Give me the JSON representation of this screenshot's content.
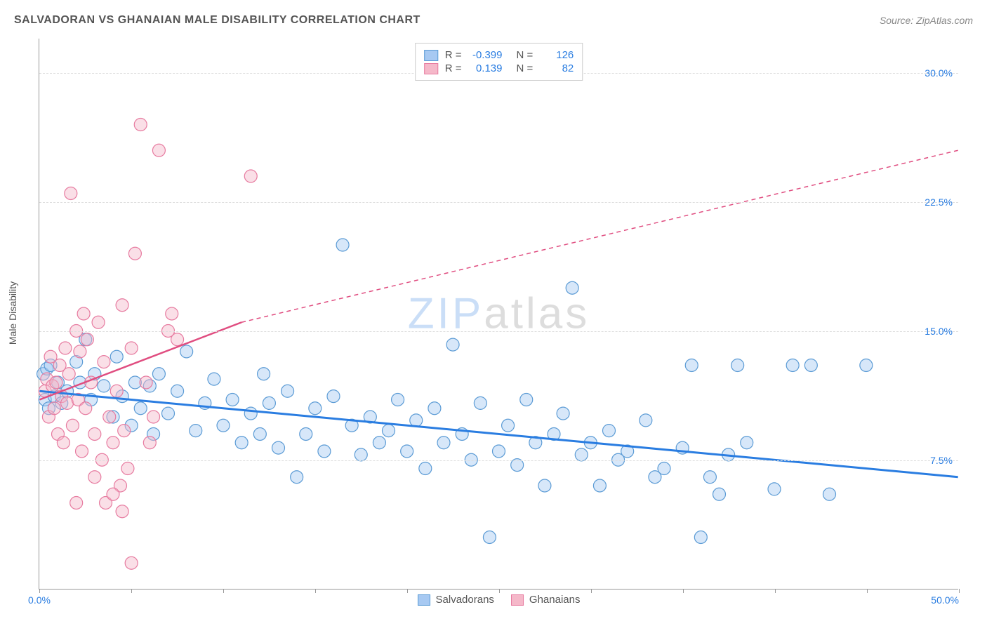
{
  "title": "SALVADORAN VS GHANAIAN MALE DISABILITY CORRELATION CHART",
  "source": "Source: ZipAtlas.com",
  "ylabel": "Male Disability",
  "watermark": {
    "part1": "ZIP",
    "part2": "atlas"
  },
  "chart": {
    "type": "scatter",
    "xlim": [
      0,
      50
    ],
    "ylim": [
      0,
      32
    ],
    "xaxis_labels": {
      "min": "0.0%",
      "max": "50.0%"
    },
    "xtick_positions": [
      0,
      5,
      10,
      15,
      20,
      25,
      30,
      35,
      40,
      45,
      50
    ],
    "ytick_labels": [
      {
        "value": 7.5,
        "label": "7.5%"
      },
      {
        "value": 15.0,
        "label": "15.0%"
      },
      {
        "value": 22.5,
        "label": "22.5%"
      },
      {
        "value": 30.0,
        "label": "30.0%"
      }
    ],
    "grid_color": "#dddddd",
    "axis_color": "#999999",
    "label_color": "#2a7de1",
    "background_color": "#ffffff",
    "marker_radius": 9,
    "marker_opacity": 0.45,
    "series": [
      {
        "name": "Salvadorans",
        "fill": "#a7c9f2",
        "stroke": "#5b9bd5",
        "trend": {
          "x1": 0,
          "y1": 11.5,
          "x2": 50,
          "y2": 6.5,
          "color": "#2a7de1",
          "width": 3,
          "dash": "none"
        },
        "stats": {
          "R": "-0.399",
          "N": "126"
        },
        "points": [
          [
            0.2,
            12.5
          ],
          [
            0.3,
            11.0
          ],
          [
            0.4,
            12.8
          ],
          [
            0.5,
            10.5
          ],
          [
            0.6,
            13.0
          ],
          [
            0.8,
            11.2
          ],
          [
            1.0,
            12.0
          ],
          [
            1.2,
            10.8
          ],
          [
            1.5,
            11.5
          ],
          [
            2.0,
            13.2
          ],
          [
            2.2,
            12.0
          ],
          [
            2.5,
            14.5
          ],
          [
            2.8,
            11.0
          ],
          [
            3.0,
            12.5
          ],
          [
            3.5,
            11.8
          ],
          [
            4.0,
            10.0
          ],
          [
            4.2,
            13.5
          ],
          [
            4.5,
            11.2
          ],
          [
            5.0,
            9.5
          ],
          [
            5.2,
            12.0
          ],
          [
            5.5,
            10.5
          ],
          [
            6.0,
            11.8
          ],
          [
            6.2,
            9.0
          ],
          [
            6.5,
            12.5
          ],
          [
            7.0,
            10.2
          ],
          [
            7.5,
            11.5
          ],
          [
            8.0,
            13.8
          ],
          [
            8.5,
            9.2
          ],
          [
            9.0,
            10.8
          ],
          [
            9.5,
            12.2
          ],
          [
            10.0,
            9.5
          ],
          [
            10.5,
            11.0
          ],
          [
            11.0,
            8.5
          ],
          [
            11.5,
            10.2
          ],
          [
            12.0,
            9.0
          ],
          [
            12.2,
            12.5
          ],
          [
            12.5,
            10.8
          ],
          [
            13.0,
            8.2
          ],
          [
            13.5,
            11.5
          ],
          [
            14.0,
            6.5
          ],
          [
            14.5,
            9.0
          ],
          [
            15.0,
            10.5
          ],
          [
            15.5,
            8.0
          ],
          [
            16.0,
            11.2
          ],
          [
            16.5,
            20.0
          ],
          [
            17.0,
            9.5
          ],
          [
            17.5,
            7.8
          ],
          [
            18.0,
            10.0
          ],
          [
            18.5,
            8.5
          ],
          [
            19.0,
            9.2
          ],
          [
            19.5,
            11.0
          ],
          [
            20.0,
            8.0
          ],
          [
            20.5,
            9.8
          ],
          [
            21.0,
            7.0
          ],
          [
            21.5,
            10.5
          ],
          [
            22.0,
            8.5
          ],
          [
            22.5,
            14.2
          ],
          [
            23.0,
            9.0
          ],
          [
            23.5,
            7.5
          ],
          [
            24.0,
            10.8
          ],
          [
            24.5,
            3.0
          ],
          [
            25.0,
            8.0
          ],
          [
            25.5,
            9.5
          ],
          [
            26.0,
            7.2
          ],
          [
            26.5,
            11.0
          ],
          [
            27.0,
            8.5
          ],
          [
            27.5,
            6.0
          ],
          [
            28.0,
            9.0
          ],
          [
            28.5,
            10.2
          ],
          [
            29.0,
            17.5
          ],
          [
            29.5,
            7.8
          ],
          [
            30.0,
            8.5
          ],
          [
            30.5,
            6.0
          ],
          [
            31.0,
            9.2
          ],
          [
            31.5,
            7.5
          ],
          [
            32.0,
            8.0
          ],
          [
            33.0,
            9.8
          ],
          [
            33.5,
            6.5
          ],
          [
            34.0,
            7.0
          ],
          [
            35.0,
            8.2
          ],
          [
            35.5,
            13.0
          ],
          [
            36.0,
            3.0
          ],
          [
            36.5,
            6.5
          ],
          [
            37.0,
            5.5
          ],
          [
            37.5,
            7.8
          ],
          [
            38.0,
            13.0
          ],
          [
            38.5,
            8.5
          ],
          [
            40.0,
            5.8
          ],
          [
            41.0,
            13.0
          ],
          [
            42.0,
            13.0
          ],
          [
            43.0,
            5.5
          ],
          [
            45.0,
            13.0
          ]
        ]
      },
      {
        "name": "Ghanaians",
        "fill": "#f5b8c9",
        "stroke": "#e77ba0",
        "trend": {
          "x1": 0,
          "y1": 11.0,
          "x2": 11,
          "y2": 15.5,
          "color": "#e04d80",
          "width": 2.5,
          "dash_after": {
            "x1": 11,
            "y1": 15.5,
            "x2": 50,
            "y2": 25.5,
            "dash": "6,5"
          }
        },
        "stats": {
          "R": "0.139",
          "N": "82"
        },
        "points": [
          [
            0.3,
            11.5
          ],
          [
            0.4,
            12.2
          ],
          [
            0.5,
            10.0
          ],
          [
            0.6,
            13.5
          ],
          [
            0.7,
            11.8
          ],
          [
            0.8,
            10.5
          ],
          [
            0.9,
            12.0
          ],
          [
            1.0,
            9.0
          ],
          [
            1.1,
            13.0
          ],
          [
            1.2,
            11.2
          ],
          [
            1.3,
            8.5
          ],
          [
            1.4,
            14.0
          ],
          [
            1.5,
            10.8
          ],
          [
            1.6,
            12.5
          ],
          [
            1.8,
            9.5
          ],
          [
            2.0,
            15.0
          ],
          [
            2.1,
            11.0
          ],
          [
            2.2,
            13.8
          ],
          [
            2.3,
            8.0
          ],
          [
            2.4,
            16.0
          ],
          [
            2.5,
            10.5
          ],
          [
            2.6,
            14.5
          ],
          [
            2.8,
            12.0
          ],
          [
            3.0,
            9.0
          ],
          [
            3.2,
            15.5
          ],
          [
            3.4,
            7.5
          ],
          [
            3.5,
            13.2
          ],
          [
            3.6,
            5.0
          ],
          [
            3.8,
            10.0
          ],
          [
            4.0,
            8.5
          ],
          [
            4.2,
            11.5
          ],
          [
            4.4,
            6.0
          ],
          [
            4.5,
            16.5
          ],
          [
            4.6,
            9.2
          ],
          [
            4.8,
            7.0
          ],
          [
            5.0,
            1.5
          ],
          [
            5.2,
            19.5
          ],
          [
            5.5,
            27.0
          ],
          [
            5.8,
            12.0
          ],
          [
            6.0,
            8.5
          ],
          [
            6.2,
            10.0
          ],
          [
            6.5,
            25.5
          ],
          [
            7.0,
            15.0
          ],
          [
            7.2,
            16.0
          ],
          [
            7.5,
            14.5
          ],
          [
            1.7,
            23.0
          ],
          [
            4.0,
            5.5
          ],
          [
            2.0,
            5.0
          ],
          [
            5.0,
            14.0
          ],
          [
            11.5,
            24.0
          ],
          [
            3.0,
            6.5
          ],
          [
            4.5,
            4.5
          ]
        ]
      }
    ]
  },
  "bottom_legend": [
    {
      "label": "Salvadorans",
      "fill": "#a7c9f2",
      "stroke": "#5b9bd5"
    },
    {
      "label": "Ghanaians",
      "fill": "#f5b8c9",
      "stroke": "#e77ba0"
    }
  ]
}
